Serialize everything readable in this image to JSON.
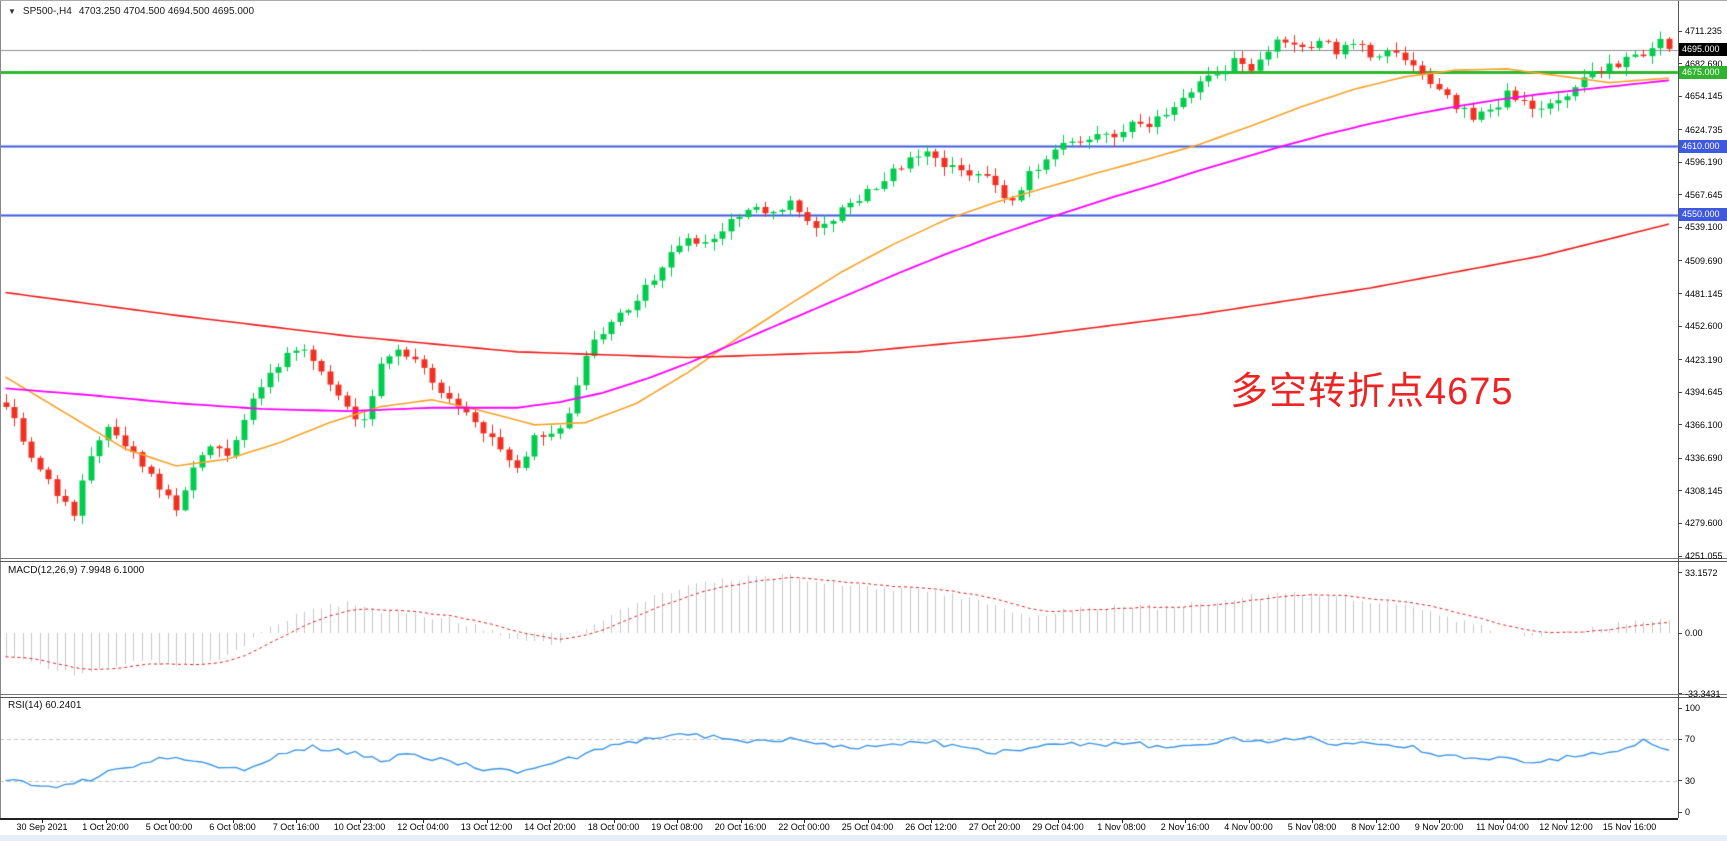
{
  "window": {
    "symbol": "SP500-,H4",
    "quote": "4703.250 4704.500 4694.500 4695.000",
    "dropdown_icon": "triangle-down"
  },
  "annotation": {
    "text": "多空转折点4675",
    "color": "#EC2424"
  },
  "price_axis": {
    "labels": [
      "4711.235",
      "4682.690",
      "4654.145",
      "4624.735",
      "4596.190",
      "4567.645",
      "4539.100",
      "4509.690",
      "4481.145",
      "4452.600",
      "4423.190",
      "4394.645",
      "4366.100",
      "4336.690",
      "4308.145",
      "4279.600",
      "4251.055"
    ]
  },
  "price_tags": [
    {
      "label": "4695.000",
      "price": 4695.0,
      "bg": "#000000",
      "fg": "#FFFFFF",
      "line_color": "#8F8F8F",
      "line_width": 1
    },
    {
      "label": "4675.000",
      "price": 4675.0,
      "bg": "#2FB42F",
      "fg": "#FFFFFF",
      "line_color": "#2FB42F",
      "line_width": 3
    },
    {
      "label": "4610.000",
      "price": 4610.0,
      "bg": "#3E58E0",
      "fg": "#FFFFFF",
      "line_color": "#3E58E0",
      "line_width": 2
    },
    {
      "label": "4550.000",
      "price": 4550.0,
      "bg": "#3E58E0",
      "fg": "#FFFFFF",
      "line_color": "#3E58E0",
      "line_width": 2
    }
  ],
  "macd_panel": {
    "label": "MACD(12,26,9) 7.9948 6.1000",
    "axis_labels": [
      "33.1572",
      "0.00",
      "-33.3431"
    ],
    "axis_values": [
      33.1572,
      0.0,
      -33.3431
    ]
  },
  "rsi_panel": {
    "label": "RSI(14) 60.2401",
    "axis_labels": [
      "100",
      "70",
      "30",
      "0"
    ],
    "axis_values": [
      100,
      70,
      30,
      0
    ],
    "level_lines": [
      70,
      30
    ]
  },
  "time_axis": {
    "labels": [
      "30 Sep 2021",
      "1 Oct 20:00",
      "5 Oct 00:00",
      "6 Oct 08:00",
      "7 Oct 16:00",
      "10 Oct 23:00",
      "12 Oct 04:00",
      "13 Oct 12:00",
      "14 Oct 20:00",
      "18 Oct 00:00",
      "19 Oct 08:00",
      "20 Oct 16:00",
      "22 Oct 00:00",
      "25 Oct 04:00",
      "26 Oct 12:00",
      "27 Oct 20:00",
      "29 Oct 04:00",
      "1 Nov 08:00",
      "2 Nov 16:00",
      "4 Nov 00:00",
      "5 Nov 08:00",
      "8 Nov 12:00",
      "9 Nov 20:00",
      "11 Nov 04:00",
      "12 Nov 12:00",
      "15 Nov 16:00"
    ]
  },
  "chart_data": {
    "type": "candlestick",
    "title": "SP500-,H4",
    "timeframe": "H4",
    "bars": 196,
    "ylim": [
      4251.055,
      4711.235
    ],
    "grid": false,
    "current_bid": 4695.0,
    "horizontal_lines": [
      4695.0,
      4675.0,
      4610.0,
      4550.0
    ],
    "candle_colors": {
      "up": "#00CC4E",
      "down": "#EF3124"
    },
    "close_anchors": [
      [
        0,
        4385
      ],
      [
        2,
        4350
      ],
      [
        4,
        4330
      ],
      [
        6,
        4305
      ],
      [
        8,
        4290
      ],
      [
        10,
        4340
      ],
      [
        12,
        4365
      ],
      [
        14,
        4350
      ],
      [
        16,
        4330
      ],
      [
        18,
        4310
      ],
      [
        20,
        4295
      ],
      [
        22,
        4330
      ],
      [
        24,
        4350
      ],
      [
        26,
        4340
      ],
      [
        28,
        4370
      ],
      [
        30,
        4400
      ],
      [
        32,
        4420
      ],
      [
        34,
        4435
      ],
      [
        36,
        4425
      ],
      [
        38,
        4400
      ],
      [
        40,
        4380
      ],
      [
        42,
        4370
      ],
      [
        44,
        4420
      ],
      [
        46,
        4435
      ],
      [
        48,
        4425
      ],
      [
        50,
        4405
      ],
      [
        52,
        4385
      ],
      [
        54,
        4375
      ],
      [
        56,
        4360
      ],
      [
        58,
        4345
      ],
      [
        60,
        4330
      ],
      [
        62,
        4355
      ],
      [
        64,
        4360
      ],
      [
        66,
        4375
      ],
      [
        68,
        4425
      ],
      [
        70,
        4450
      ],
      [
        72,
        4465
      ],
      [
        74,
        4475
      ],
      [
        76,
        4495
      ],
      [
        78,
        4515
      ],
      [
        80,
        4530
      ],
      [
        82,
        4525
      ],
      [
        84,
        4540
      ],
      [
        86,
        4550
      ],
      [
        88,
        4560
      ],
      [
        90,
        4550
      ],
      [
        92,
        4560
      ],
      [
        94,
        4545
      ],
      [
        96,
        4540
      ],
      [
        98,
        4555
      ],
      [
        100,
        4565
      ],
      [
        102,
        4575
      ],
      [
        104,
        4590
      ],
      [
        106,
        4600
      ],
      [
        108,
        4605
      ],
      [
        110,
        4595
      ],
      [
        112,
        4585
      ],
      [
        114,
        4590
      ],
      [
        116,
        4575
      ],
      [
        118,
        4560
      ],
      [
        120,
        4585
      ],
      [
        122,
        4600
      ],
      [
        124,
        4610
      ],
      [
        126,
        4615
      ],
      [
        128,
        4620
      ],
      [
        130,
        4615
      ],
      [
        132,
        4630
      ],
      [
        134,
        4625
      ],
      [
        136,
        4640
      ],
      [
        138,
        4655
      ],
      [
        140,
        4665
      ],
      [
        142,
        4675
      ],
      [
        144,
        4685
      ],
      [
        146,
        4680
      ],
      [
        148,
        4695
      ],
      [
        150,
        4705
      ],
      [
        152,
        4695
      ],
      [
        154,
        4700
      ],
      [
        156,
        4695
      ],
      [
        158,
        4700
      ],
      [
        160,
        4690
      ],
      [
        162,
        4695
      ],
      [
        164,
        4685
      ],
      [
        166,
        4675
      ],
      [
        168,
        4660
      ],
      [
        170,
        4645
      ],
      [
        172,
        4635
      ],
      [
        174,
        4640
      ],
      [
        176,
        4655
      ],
      [
        178,
        4650
      ],
      [
        180,
        4640
      ],
      [
        182,
        4650
      ],
      [
        184,
        4665
      ],
      [
        186,
        4675
      ],
      [
        188,
        4680
      ],
      [
        190,
        4685
      ],
      [
        192,
        4690
      ],
      [
        194,
        4705
      ],
      [
        195,
        4695
      ]
    ],
    "moving_averages": [
      {
        "name": "ma-fast-orange",
        "color": "#F7A229",
        "width": 1.6,
        "anchors": [
          [
            0,
            4408
          ],
          [
            8,
            4372
          ],
          [
            14,
            4345
          ],
          [
            20,
            4330
          ],
          [
            26,
            4336
          ],
          [
            32,
            4350
          ],
          [
            38,
            4368
          ],
          [
            44,
            4382
          ],
          [
            50,
            4388
          ],
          [
            56,
            4378
          ],
          [
            62,
            4366
          ],
          [
            68,
            4368
          ],
          [
            74,
            4385
          ],
          [
            80,
            4412
          ],
          [
            86,
            4443
          ],
          [
            92,
            4472
          ],
          [
            98,
            4500
          ],
          [
            104,
            4524
          ],
          [
            110,
            4545
          ],
          [
            116,
            4561
          ],
          [
            122,
            4574
          ],
          [
            128,
            4587
          ],
          [
            134,
            4599
          ],
          [
            140,
            4612
          ],
          [
            146,
            4628
          ],
          [
            152,
            4645
          ],
          [
            158,
            4660
          ],
          [
            164,
            4671
          ],
          [
            170,
            4677
          ],
          [
            176,
            4678
          ],
          [
            182,
            4672
          ],
          [
            188,
            4666
          ],
          [
            195,
            4670
          ]
        ]
      },
      {
        "name": "ma-mid-magenta",
        "color": "#FF00FF",
        "width": 1.8,
        "anchors": [
          [
            0,
            4398
          ],
          [
            10,
            4392
          ],
          [
            20,
            4385
          ],
          [
            30,
            4380
          ],
          [
            40,
            4378
          ],
          [
            50,
            4381
          ],
          [
            60,
            4381
          ],
          [
            65,
            4386
          ],
          [
            70,
            4394
          ],
          [
            75,
            4406
          ],
          [
            80,
            4420
          ],
          [
            85,
            4436
          ],
          [
            90,
            4452
          ],
          [
            95,
            4468
          ],
          [
            100,
            4484
          ],
          [
            105,
            4500
          ],
          [
            110,
            4515
          ],
          [
            115,
            4529
          ],
          [
            120,
            4542
          ],
          [
            125,
            4554
          ],
          [
            130,
            4566
          ],
          [
            135,
            4577
          ],
          [
            140,
            4589
          ],
          [
            145,
            4600
          ],
          [
            150,
            4611
          ],
          [
            155,
            4621
          ],
          [
            160,
            4630
          ],
          [
            165,
            4638
          ],
          [
            170,
            4645
          ],
          [
            175,
            4651
          ],
          [
            180,
            4656
          ],
          [
            185,
            4660
          ],
          [
            190,
            4664
          ],
          [
            195,
            4668
          ]
        ]
      },
      {
        "name": "ma-slow-red",
        "color": "#EE1C1C",
        "width": 1.6,
        "anchors": [
          [
            0,
            4482
          ],
          [
            20,
            4462
          ],
          [
            40,
            4444
          ],
          [
            60,
            4430
          ],
          [
            80,
            4425
          ],
          [
            100,
            4430
          ],
          [
            120,
            4444
          ],
          [
            140,
            4463
          ],
          [
            160,
            4486
          ],
          [
            180,
            4514
          ],
          [
            195,
            4542
          ]
        ]
      }
    ],
    "macd": {
      "hist_color": "#C9C9C9",
      "signal_color": "#E02020",
      "current_macd": 7.9948,
      "current_signal": 6.1,
      "scale_max": 33.1572,
      "scale_min": -33.3431,
      "anchors": [
        [
          0,
          -12
        ],
        [
          4,
          -18
        ],
        [
          8,
          -22
        ],
        [
          12,
          -20
        ],
        [
          16,
          -14
        ],
        [
          20,
          -18
        ],
        [
          24,
          -16
        ],
        [
          28,
          -6
        ],
        [
          32,
          6
        ],
        [
          36,
          14
        ],
        [
          40,
          16
        ],
        [
          44,
          12
        ],
        [
          48,
          10
        ],
        [
          52,
          8
        ],
        [
          56,
          2
        ],
        [
          60,
          -4
        ],
        [
          64,
          -6
        ],
        [
          68,
          2
        ],
        [
          72,
          12
        ],
        [
          76,
          20
        ],
        [
          80,
          26
        ],
        [
          84,
          29
        ],
        [
          88,
          31
        ],
        [
          92,
          31
        ],
        [
          96,
          28
        ],
        [
          100,
          26
        ],
        [
          104,
          24
        ],
        [
          108,
          24
        ],
        [
          112,
          20
        ],
        [
          116,
          14
        ],
        [
          120,
          10
        ],
        [
          124,
          12
        ],
        [
          128,
          14
        ],
        [
          132,
          15
        ],
        [
          136,
          14
        ],
        [
          140,
          16
        ],
        [
          144,
          19
        ],
        [
          148,
          21
        ],
        [
          152,
          22
        ],
        [
          156,
          20
        ],
        [
          160,
          18
        ],
        [
          164,
          15
        ],
        [
          168,
          10
        ],
        [
          172,
          4
        ],
        [
          176,
          0
        ],
        [
          180,
          -2
        ],
        [
          184,
          1
        ],
        [
          188,
          4
        ],
        [
          192,
          6
        ],
        [
          195,
          8
        ]
      ]
    },
    "rsi": {
      "color": "#3C96E6",
      "current": 60.2401,
      "range": [
        0,
        100
      ],
      "levels": [
        70,
        30
      ],
      "anchors": [
        [
          0,
          32
        ],
        [
          3,
          26
        ],
        [
          6,
          24
        ],
        [
          9,
          29
        ],
        [
          12,
          38
        ],
        [
          16,
          48
        ],
        [
          20,
          52
        ],
        [
          24,
          44
        ],
        [
          28,
          40
        ],
        [
          32,
          55
        ],
        [
          36,
          62
        ],
        [
          40,
          58
        ],
        [
          44,
          50
        ],
        [
          48,
          56
        ],
        [
          52,
          48
        ],
        [
          56,
          42
        ],
        [
          60,
          38
        ],
        [
          64,
          46
        ],
        [
          68,
          56
        ],
        [
          72,
          66
        ],
        [
          76,
          70
        ],
        [
          80,
          74
        ],
        [
          84,
          72
        ],
        [
          88,
          68
        ],
        [
          92,
          71
        ],
        [
          96,
          64
        ],
        [
          100,
          62
        ],
        [
          104,
          66
        ],
        [
          108,
          68
        ],
        [
          112,
          62
        ],
        [
          116,
          56
        ],
        [
          120,
          62
        ],
        [
          124,
          66
        ],
        [
          128,
          64
        ],
        [
          132,
          66
        ],
        [
          136,
          62
        ],
        [
          140,
          66
        ],
        [
          144,
          70
        ],
        [
          148,
          68
        ],
        [
          152,
          72
        ],
        [
          156,
          66
        ],
        [
          160,
          68
        ],
        [
          164,
          64
        ],
        [
          168,
          56
        ],
        [
          172,
          50
        ],
        [
          176,
          52
        ],
        [
          180,
          48
        ],
        [
          184,
          54
        ],
        [
          188,
          58
        ],
        [
          192,
          68
        ],
        [
          195,
          60.24
        ]
      ]
    }
  }
}
